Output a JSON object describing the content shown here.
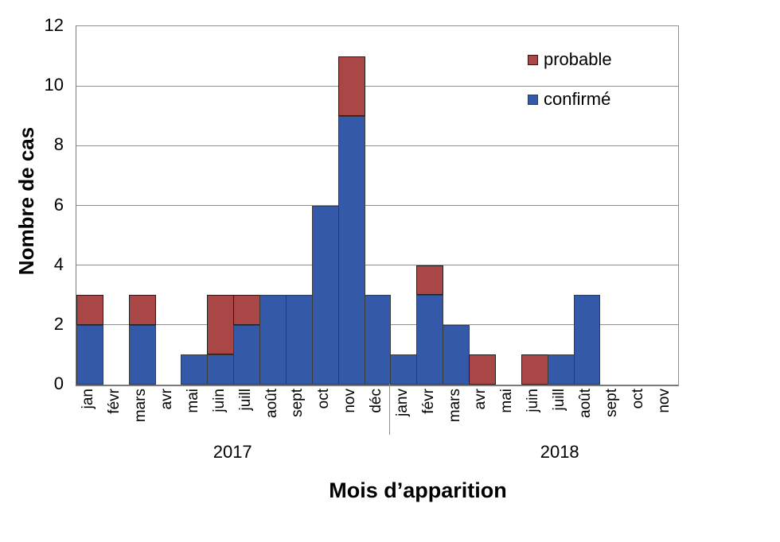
{
  "chart_data": {
    "type": "bar",
    "stacked": true,
    "title": "",
    "xlabel": "Mois d’apparition",
    "ylabel": "Nombre de cas",
    "ylim": [
      0,
      12
    ],
    "yticks": [
      0,
      2,
      4,
      6,
      8,
      10,
      12
    ],
    "grid": true,
    "legend_position": "top-right-inside",
    "groups": [
      {
        "year": "2017",
        "months": [
          "jan",
          "févr",
          "mars",
          "avr",
          "mai",
          "juin",
          "juill",
          "août",
          "sept",
          "oct",
          "nov",
          "déc"
        ]
      },
      {
        "year": "2018",
        "months": [
          "janv",
          "févr",
          "mars",
          "avr",
          "mai",
          "juin",
          "juill",
          "août",
          "sept",
          "oct",
          "nov"
        ]
      }
    ],
    "series": [
      {
        "name": "confirmé",
        "color": "#3459A8",
        "border_color": "#3a3a3a",
        "values": [
          2,
          0,
          2,
          0,
          1,
          1,
          2,
          3,
          3,
          6,
          9,
          3,
          1,
          3,
          2,
          0,
          0,
          0,
          1,
          3,
          0,
          0,
          0
        ]
      },
      {
        "name": "probable",
        "color": "#A94747",
        "border_color": "#1f1f1f",
        "values": [
          1,
          0,
          1,
          0,
          0,
          2,
          1,
          0,
          0,
          0,
          2,
          0,
          0,
          1,
          0,
          1,
          0,
          1,
          0,
          0,
          0,
          0,
          0
        ]
      }
    ]
  },
  "legend": {
    "items": [
      {
        "label": "probable",
        "color": "#A94747",
        "border_color": "#1f1f1f"
      },
      {
        "label": "confirmé",
        "color": "#3459A8",
        "border_color": "#3a3a3a"
      }
    ]
  },
  "colors": {
    "gridline": "#8f8f8f",
    "axis": "#7a7a7a"
  }
}
